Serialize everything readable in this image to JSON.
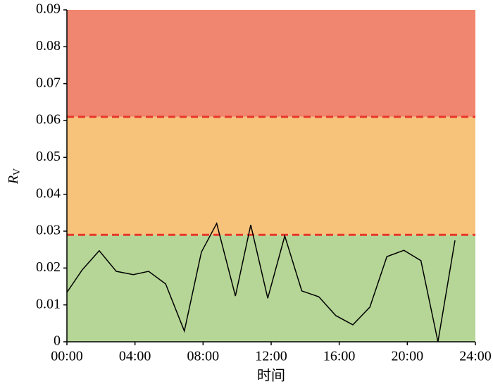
{
  "chart_data": {
    "type": "line",
    "x": [
      0,
      0.9,
      1.9,
      2.9,
      3.9,
      4.8,
      5.8,
      6.9,
      7.9,
      8.8,
      9.9,
      10.8,
      11.8,
      12.8,
      13.8,
      14.8,
      15.8,
      16.8,
      17.8,
      18.8,
      19.8,
      20.8,
      21.8,
      22.8
    ],
    "series": [
      {
        "color": "#000000",
        "values": [
          0.0134,
          0.0195,
          0.0247,
          0.0191,
          0.0182,
          0.0191,
          0.0157,
          0.0029,
          0.0243,
          0.0321,
          0.0124,
          0.0317,
          0.0118,
          0.0287,
          0.0138,
          0.0122,
          0.0071,
          0.0046,
          0.0094,
          0.0231,
          0.0248,
          0.022,
          0,
          0.0275
        ]
      }
    ],
    "xlim": [
      0,
      24
    ],
    "xticks": [
      {
        "value": 0,
        "label": "00:00"
      },
      {
        "value": 4,
        "label": "04:00"
      },
      {
        "value": 8,
        "label": "08:00"
      },
      {
        "value": 12,
        "label": "12:00"
      },
      {
        "value": 16,
        "label": "16:00"
      },
      {
        "value": 20,
        "label": "20:00"
      },
      {
        "value": 24,
        "label": "24:00"
      }
    ],
    "ylim": [
      0,
      0.09
    ],
    "yticks": [
      0,
      0.01,
      0.02,
      0.03,
      0.04,
      0.05,
      0.06,
      0.07,
      0.08,
      0.09
    ],
    "bands": [
      {
        "from": 0,
        "to": 0.029,
        "color": "#b5d696"
      },
      {
        "from": 0.029,
        "to": 0.061,
        "color": "#f7c37b"
      },
      {
        "from": 0.061,
        "to": 0.09,
        "color": "#f0866f"
      }
    ],
    "thresholds": [
      0.029,
      0.061
    ],
    "threshold_color": "#e8372a",
    "xlabel": "时间",
    "ylabel": {
      "main": "R",
      "sub": "V"
    }
  }
}
